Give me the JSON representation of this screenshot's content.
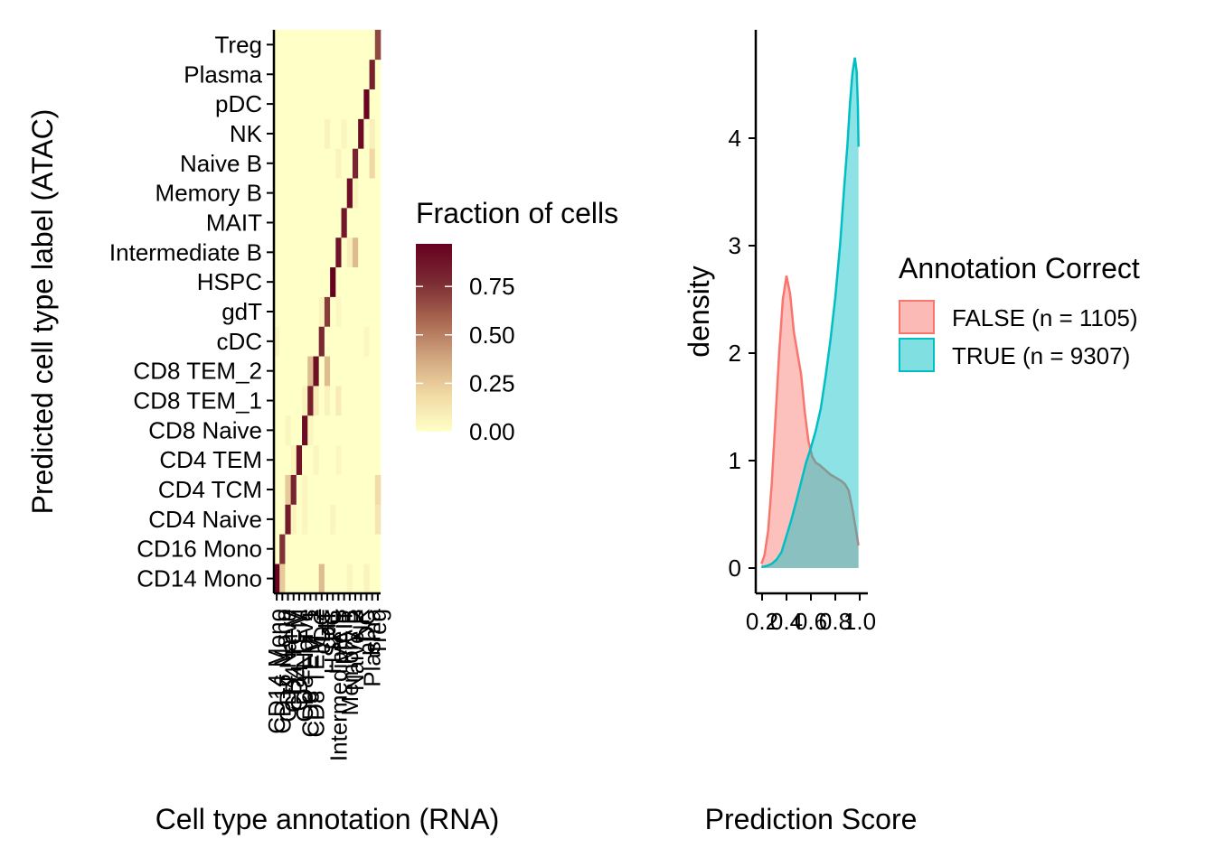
{
  "chart_data": [
    {
      "type": "heatmap",
      "xlabel": "Cell type annotation (RNA)",
      "ylabel": "Predicted cell type label (ATAC)",
      "x_categories": [
        "CD14 Mono",
        "CD16 Mono",
        "CD4 Naive",
        "CD4 TCM",
        "CD4 TEM",
        "CD8 Naive",
        "CD8 TEM_1",
        "CD8 TEM_2",
        "cDC",
        "gdT",
        "HSPC",
        "Intermediate B",
        "MAIT",
        "Memory B",
        "Naive B",
        "NK",
        "pDC",
        "Plasma",
        "Treg"
      ],
      "y_categories": [
        "CD14 Mono",
        "CD16 Mono",
        "CD4 Naive",
        "CD4 TCM",
        "CD4 TEM",
        "CD8 Naive",
        "CD8 TEM_1",
        "CD8 TEM_2",
        "cDC",
        "gdT",
        "HSPC",
        "Intermediate B",
        "MAIT",
        "Memory B",
        "Naive B",
        "NK",
        "pDC",
        "Plasma",
        "Treg"
      ],
      "diagonal_fraction": [
        0.96,
        0.75,
        0.85,
        0.8,
        0.88,
        0.92,
        0.82,
        0.9,
        0.78,
        0.72,
        0.97,
        0.88,
        0.86,
        0.9,
        0.8,
        0.92,
        0.95,
        0.82,
        0.68
      ],
      "off_diagonal": [
        {
          "y": "CD14 Mono",
          "x": "CD16 Mono",
          "value": 0.25
        },
        {
          "y": "CD14 Mono",
          "x": "cDC",
          "value": 0.3
        },
        {
          "y": "CD14 Mono",
          "x": "Memory B",
          "value": 0.05
        },
        {
          "y": "CD14 Mono",
          "x": "pDC",
          "value": 0.06
        },
        {
          "y": "CD4 Naive",
          "x": "CD4 TCM",
          "value": 0.06
        },
        {
          "y": "CD4 Naive",
          "x": "CD8 Naive",
          "value": 0.05
        },
        {
          "y": "CD4 Naive",
          "x": "HSPC",
          "value": 0.05
        },
        {
          "y": "CD4 Naive",
          "x": "Treg",
          "value": 0.12
        },
        {
          "y": "CD4 TCM",
          "x": "CD4 Naive",
          "value": 0.25
        },
        {
          "y": "CD4 TCM",
          "x": "CD8 Naive",
          "value": 0.05
        },
        {
          "y": "CD4 TCM",
          "x": "Treg",
          "value": 0.18
        },
        {
          "y": "CD4 TEM",
          "x": "CD4 TCM",
          "value": 0.06
        },
        {
          "y": "CD4 TEM",
          "x": "CD8 TEM_2",
          "value": 0.05
        },
        {
          "y": "CD4 TEM",
          "x": "Intermediate B",
          "value": 0.04
        },
        {
          "y": "CD8 Naive",
          "x": "CD4 Naive",
          "value": 0.05
        },
        {
          "y": "CD8 Naive",
          "x": "CD8 TEM_1",
          "value": 0.05
        },
        {
          "y": "CD8 TEM_1",
          "x": "CD8 Naive",
          "value": 0.06
        },
        {
          "y": "CD8 TEM_1",
          "x": "CD8 TEM_2",
          "value": 0.1
        },
        {
          "y": "CD8 TEM_1",
          "x": "gdT",
          "value": 0.06
        },
        {
          "y": "CD8 TEM_1",
          "x": "Intermediate B",
          "value": 0.1
        },
        {
          "y": "CD8 TEM_2",
          "x": "CD8 TEM_1",
          "value": 0.3
        },
        {
          "y": "CD8 TEM_2",
          "x": "gdT",
          "value": 0.3
        },
        {
          "y": "cDC",
          "x": "CD14 Mono",
          "value": 0.05
        },
        {
          "y": "cDC",
          "x": "pDC",
          "value": 0.04
        },
        {
          "y": "gdT",
          "x": "cDC",
          "value": 0.06
        },
        {
          "y": "gdT",
          "x": "Intermediate B",
          "value": 0.04
        },
        {
          "y": "Intermediate B",
          "x": "Memory B",
          "value": 0.08
        },
        {
          "y": "Intermediate B",
          "x": "Naive B",
          "value": 0.3
        },
        {
          "y": "Naive B",
          "x": "Intermediate B",
          "value": 0.06
        },
        {
          "y": "Naive B",
          "x": "Plasma",
          "value": 0.2
        },
        {
          "y": "NK",
          "x": "gdT",
          "value": 0.06
        },
        {
          "y": "NK",
          "x": "MAIT",
          "value": 0.05
        },
        {
          "y": "NK",
          "x": "Plasma",
          "value": 0.08
        },
        {
          "y": "Memory B",
          "x": "Naive B",
          "value": 0.06
        }
      ],
      "colorbar": {
        "title": "Fraction of cells",
        "ticks": [
          "0.75",
          "0.50",
          "0.25",
          "0.00"
        ],
        "tick_values": [
          0.75,
          0.5,
          0.25,
          0.0
        ],
        "range": [
          0,
          0.97
        ],
        "colors": [
          "#ffffc8",
          "#f1d9a4",
          "#cfa47e",
          "#a8654f",
          "#7a2a33",
          "#67001f"
        ]
      }
    },
    {
      "type": "area",
      "xlabel": "Prediction Score",
      "ylabel": "density",
      "xticks": [
        "0.2",
        "0.4",
        "0.6",
        "0.8",
        "1.0"
      ],
      "yticks": [
        "0",
        "1",
        "2",
        "3",
        "4"
      ],
      "xlim": [
        0.2,
        1.0
      ],
      "ylim": [
        0,
        4.9
      ],
      "legend": {
        "title": "Annotation Correct",
        "placement": "right"
      },
      "series": [
        {
          "name": "FALSE (n = 1105)",
          "color": "#f8766d",
          "x": [
            0.195,
            0.22,
            0.25,
            0.28,
            0.31,
            0.34,
            0.37,
            0.4,
            0.43,
            0.46,
            0.49,
            0.52,
            0.55,
            0.58,
            0.61,
            0.64,
            0.67,
            0.7,
            0.73,
            0.76,
            0.79,
            0.82,
            0.85,
            0.88,
            0.91,
            0.94,
            0.97,
            0.99
          ],
          "y": [
            0.04,
            0.12,
            0.35,
            0.8,
            1.4,
            2.0,
            2.5,
            2.72,
            2.55,
            2.2,
            2.0,
            1.8,
            1.45,
            1.18,
            1.04,
            0.98,
            0.96,
            0.93,
            0.9,
            0.87,
            0.85,
            0.83,
            0.81,
            0.78,
            0.72,
            0.55,
            0.35,
            0.21
          ]
        },
        {
          "name": "TRUE (n = 9307)",
          "color": "#00bfc4",
          "x": [
            0.195,
            0.24,
            0.28,
            0.32,
            0.36,
            0.4,
            0.44,
            0.48,
            0.52,
            0.56,
            0.6,
            0.64,
            0.68,
            0.72,
            0.76,
            0.8,
            0.84,
            0.87,
            0.9,
            0.92,
            0.94,
            0.96,
            0.975,
            0.985,
            0.99
          ],
          "y": [
            0.01,
            0.02,
            0.04,
            0.08,
            0.15,
            0.3,
            0.45,
            0.62,
            0.8,
            0.98,
            1.12,
            1.28,
            1.48,
            1.78,
            2.12,
            2.52,
            3.02,
            3.5,
            3.95,
            4.32,
            4.6,
            4.75,
            4.62,
            4.3,
            3.92
          ]
        }
      ]
    }
  ]
}
